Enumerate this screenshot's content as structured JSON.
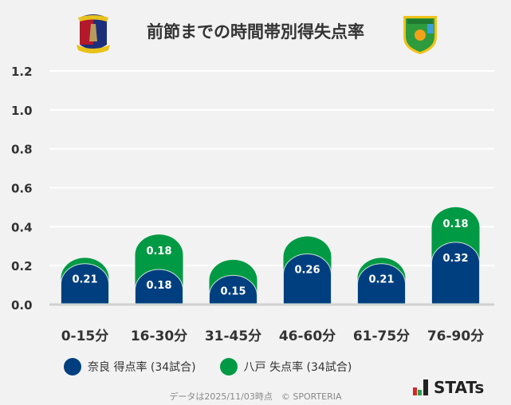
{
  "title": "前節までの時間帯別得失点率",
  "logos": {
    "left": "奈良クラブ エンブレム",
    "right": "ヴァンラーレ八戸 エンブレム"
  },
  "chart_data": {
    "type": "bar",
    "stacked": true,
    "categories": [
      "0-15分",
      "16-30分",
      "31-45分",
      "46-60分",
      "61-75分",
      "76-90分"
    ],
    "series": [
      {
        "name": "奈良 得点率 (34試合)",
        "color": "#003f7f",
        "values": [
          0.21,
          0.18,
          0.15,
          0.26,
          0.21,
          0.32
        ],
        "labels": [
          "0.21",
          "0.18",
          "0.15",
          "0.26",
          "0.21",
          "0.32"
        ]
      },
      {
        "name": "八戸 失点率 (34試合)",
        "color": "#009a44",
        "values": [
          0.03,
          0.18,
          0.08,
          0.09,
          0.03,
          0.18
        ],
        "labels": [
          "",
          "0.18",
          "",
          "",
          "",
          "0.18"
        ]
      }
    ],
    "ylim": [
      0,
      1.2
    ],
    "yticks": [
      "0.0",
      "0.2",
      "0.4",
      "0.6",
      "0.8",
      "1.0",
      "1.2"
    ],
    "grid": true,
    "legend": "bottom"
  },
  "footer": "データは2025/11/03時点　© SPORTERIA",
  "brand": "STATs"
}
